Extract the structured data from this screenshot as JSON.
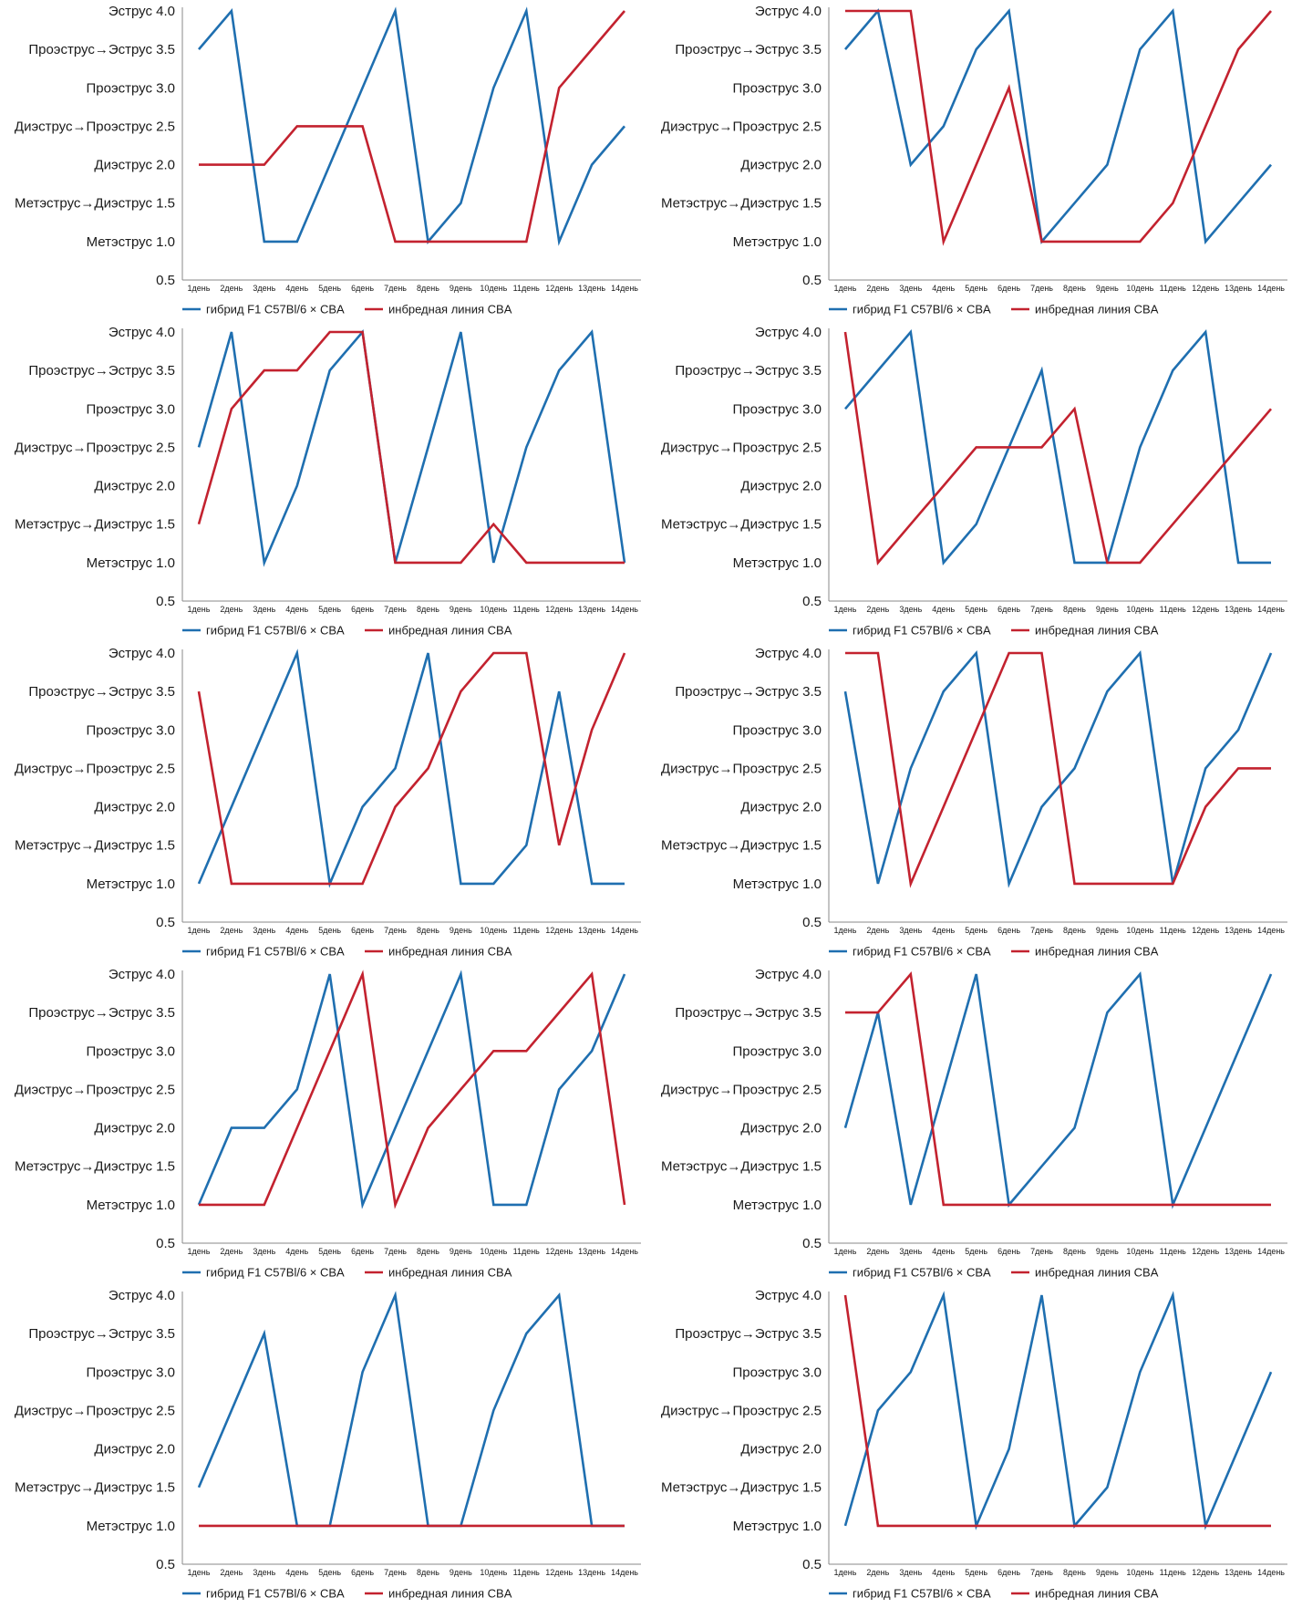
{
  "colors": {
    "hybrid": "#1f6fb0",
    "inbred": "#c3222f",
    "axis": "#8a8a8a"
  },
  "chart_data": [
    {
      "type": "line",
      "x": [
        "1день",
        "2день",
        "3день",
        "4день",
        "5день",
        "6день",
        "7день",
        "8день",
        "9день",
        "10день",
        "11день",
        "12день",
        "13день",
        "14день"
      ],
      "ylim": [
        0.5,
        4.0
      ],
      "y_ticks": [
        {
          "value": 4.0,
          "label": "Эструс 4.0"
        },
        {
          "value": 3.5,
          "label": "Проэструс→Эструс 3.5"
        },
        {
          "value": 3.0,
          "label": "Проэструс 3.0"
        },
        {
          "value": 2.5,
          "label": "Диэструс→Проэструс 2.5"
        },
        {
          "value": 2.0,
          "label": "Диэструс 2.0"
        },
        {
          "value": 1.5,
          "label": "Метэструс→Диэструс 1.5"
        },
        {
          "value": 1.0,
          "label": "Метэструс 1.0"
        },
        {
          "value": 0.5,
          "label": "0.5"
        }
      ],
      "series": [
        {
          "name": "гибрид F1 C57Bl/6 × CBA",
          "key": "hybrid",
          "values": [
            3.5,
            4,
            1,
            1,
            2,
            3,
            4,
            1,
            1.5,
            3,
            4,
            1,
            2,
            2.5
          ]
        },
        {
          "name": "инбредная линия CBA",
          "key": "inbred",
          "values": [
            2,
            2,
            2,
            2.5,
            2.5,
            2.5,
            1,
            1,
            1,
            1,
            1,
            3,
            3.5,
            4
          ]
        }
      ]
    },
    {
      "type": "line",
      "x": [
        "1день",
        "2день",
        "3день",
        "4день",
        "5день",
        "6день",
        "7день",
        "8день",
        "9день",
        "10день",
        "11день",
        "12день",
        "13день",
        "14день"
      ],
      "ylim": [
        0.5,
        4.0
      ],
      "y_ticks": [
        {
          "value": 4.0,
          "label": "Эструс 4.0"
        },
        {
          "value": 3.5,
          "label": "Проэструс→Эструс 3.5"
        },
        {
          "value": 3.0,
          "label": "Проэструс 3.0"
        },
        {
          "value": 2.5,
          "label": "Диэструс→Проэструс 2.5"
        },
        {
          "value": 2.0,
          "label": "Диэструс 2.0"
        },
        {
          "value": 1.5,
          "label": "Метэструс→Диэструс 1.5"
        },
        {
          "value": 1.0,
          "label": "Метэструс 1.0"
        },
        {
          "value": 0.5,
          "label": "0.5"
        }
      ],
      "series": [
        {
          "name": "гибрид F1 C57Bl/6 × CBA",
          "key": "hybrid",
          "values": [
            3.5,
            4,
            2,
            2.5,
            3.5,
            4,
            1,
            1.5,
            2,
            3.5,
            4,
            1,
            1.5,
            2
          ]
        },
        {
          "name": "инбредная линия CBA",
          "key": "inbred",
          "values": [
            4,
            4,
            4,
            1,
            2,
            3,
            1,
            1,
            1,
            1,
            1.5,
            2.5,
            3.5,
            4
          ]
        }
      ]
    },
    {
      "type": "line",
      "x": [
        "1день",
        "2день",
        "3день",
        "4день",
        "5день",
        "6день",
        "7день",
        "8день",
        "9день",
        "10день",
        "11день",
        "12день",
        "13день",
        "14день"
      ],
      "ylim": [
        0.5,
        4.0
      ],
      "y_ticks": [
        {
          "value": 4.0,
          "label": "Эструс 4.0"
        },
        {
          "value": 3.5,
          "label": "Проэструс→Эструс 3.5"
        },
        {
          "value": 3.0,
          "label": "Проэструс 3.0"
        },
        {
          "value": 2.5,
          "label": "Диэструс→Проэструс 2.5"
        },
        {
          "value": 2.0,
          "label": "Диэструс 2.0"
        },
        {
          "value": 1.5,
          "label": "Метэструс→Диэструс 1.5"
        },
        {
          "value": 1.0,
          "label": "Метэструс 1.0"
        },
        {
          "value": 0.5,
          "label": "0.5"
        }
      ],
      "series": [
        {
          "name": "гибрид F1 C57Bl/6 × CBA",
          "key": "hybrid",
          "values": [
            2.5,
            4,
            1,
            2,
            3.5,
            4,
            1,
            2.5,
            4,
            1,
            2.5,
            3.5,
            4,
            1
          ]
        },
        {
          "name": "инбредная линия CBA",
          "key": "inbred",
          "values": [
            1.5,
            3,
            3.5,
            3.5,
            4,
            4,
            1,
            1,
            1,
            1.5,
            1,
            1,
            1,
            1
          ]
        }
      ]
    },
    {
      "type": "line",
      "x": [
        "1день",
        "2день",
        "3день",
        "4день",
        "5день",
        "6день",
        "7день",
        "8день",
        "9день",
        "10день",
        "11день",
        "12день",
        "13день",
        "14день"
      ],
      "ylim": [
        0.5,
        4.0
      ],
      "y_ticks": [
        {
          "value": 4.0,
          "label": "Эструс 4.0"
        },
        {
          "value": 3.5,
          "label": "Проэструс→Эструс 3.5"
        },
        {
          "value": 3.0,
          "label": "Проэструс 3.0"
        },
        {
          "value": 2.5,
          "label": "Диэструс→Проэструс 2.5"
        },
        {
          "value": 2.0,
          "label": "Диэструс 2.0"
        },
        {
          "value": 1.5,
          "label": "Метэструс→Диэструс 1.5"
        },
        {
          "value": 1.0,
          "label": "Метэструс 1.0"
        },
        {
          "value": 0.5,
          "label": "0.5"
        }
      ],
      "series": [
        {
          "name": "гибрид F1 C57Bl/6 × CBA",
          "key": "hybrid",
          "values": [
            3,
            3.5,
            4,
            1,
            1.5,
            2.5,
            3.5,
            1,
            1,
            2.5,
            3.5,
            4,
            1,
            1
          ]
        },
        {
          "name": "инбредная линия CBA",
          "key": "inbred",
          "values": [
            4,
            1,
            1.5,
            2,
            2.5,
            2.5,
            2.5,
            3,
            1,
            1,
            1.5,
            2,
            2.5,
            3
          ]
        }
      ]
    },
    {
      "type": "line",
      "x": [
        "1день",
        "2день",
        "3день",
        "4день",
        "5день",
        "6день",
        "7день",
        "8день",
        "9день",
        "10день",
        "11день",
        "12день",
        "13день",
        "14день"
      ],
      "ylim": [
        0.5,
        4.0
      ],
      "y_ticks": [
        {
          "value": 4.0,
          "label": "Эструс 4.0"
        },
        {
          "value": 3.5,
          "label": "Проэструс→Эструс 3.5"
        },
        {
          "value": 3.0,
          "label": "Проэструс 3.0"
        },
        {
          "value": 2.5,
          "label": "Диэструс→Проэструс 2.5"
        },
        {
          "value": 2.0,
          "label": "Диэструс 2.0"
        },
        {
          "value": 1.5,
          "label": "Метэструс→Диэструс 1.5"
        },
        {
          "value": 1.0,
          "label": "Метэструс 1.0"
        },
        {
          "value": 0.5,
          "label": "0.5"
        }
      ],
      "series": [
        {
          "name": "гибрид F1 C57Bl/6 × CBA",
          "key": "hybrid",
          "values": [
            1,
            2,
            3,
            4,
            1,
            2,
            2.5,
            4,
            1,
            1,
            1.5,
            3.5,
            1,
            1
          ]
        },
        {
          "name": "инбредная линия CBA",
          "key": "inbred",
          "values": [
            3.5,
            1,
            1,
            1,
            1,
            1,
            2,
            2.5,
            3.5,
            4,
            4,
            1.5,
            3,
            4
          ]
        }
      ]
    },
    {
      "type": "line",
      "x": [
        "1день",
        "2день",
        "3день",
        "4день",
        "5день",
        "6день",
        "7день",
        "8день",
        "9день",
        "10день",
        "11день",
        "12день",
        "13день",
        "14день"
      ],
      "ylim": [
        0.5,
        4.0
      ],
      "y_ticks": [
        {
          "value": 4.0,
          "label": "Эструс 4.0"
        },
        {
          "value": 3.5,
          "label": "Проэструс→Эструс 3.5"
        },
        {
          "value": 3.0,
          "label": "Проэструс 3.0"
        },
        {
          "value": 2.5,
          "label": "Диэструс→Проэструс 2.5"
        },
        {
          "value": 2.0,
          "label": "Диэструс 2.0"
        },
        {
          "value": 1.5,
          "label": "Метэструс→Диэструс 1.5"
        },
        {
          "value": 1.0,
          "label": "Метэструс 1.0"
        },
        {
          "value": 0.5,
          "label": "0.5"
        }
      ],
      "series": [
        {
          "name": "гибрид F1 C57Bl/6 × CBA",
          "key": "hybrid",
          "values": [
            3.5,
            1,
            2.5,
            3.5,
            4,
            1,
            2,
            2.5,
            3.5,
            4,
            1,
            2.5,
            3,
            4
          ]
        },
        {
          "name": "инбредная линия CBA",
          "key": "inbred",
          "values": [
            4,
            4,
            1,
            2,
            3,
            4,
            4,
            1,
            1,
            1,
            1,
            2,
            2.5,
            2.5
          ]
        }
      ]
    },
    {
      "type": "line",
      "x": [
        "1день",
        "2день",
        "3день",
        "4день",
        "5день",
        "6день",
        "7день",
        "8день",
        "9день",
        "10день",
        "11день",
        "12день",
        "13день",
        "14день"
      ],
      "ylim": [
        0.5,
        4.0
      ],
      "y_ticks": [
        {
          "value": 4.0,
          "label": "Эструс 4.0"
        },
        {
          "value": 3.5,
          "label": "Проэструс→Эструс 3.5"
        },
        {
          "value": 3.0,
          "label": "Проэструс 3.0"
        },
        {
          "value": 2.5,
          "label": "Диэструс→Проэструс 2.5"
        },
        {
          "value": 2.0,
          "label": "Диэструс 2.0"
        },
        {
          "value": 1.5,
          "label": "Метэструс→Диэструс 1.5"
        },
        {
          "value": 1.0,
          "label": "Метэструс 1.0"
        },
        {
          "value": 0.5,
          "label": "0.5"
        }
      ],
      "series": [
        {
          "name": "гибрид F1 C57Bl/6 × CBA",
          "key": "hybrid",
          "values": [
            1,
            2,
            2,
            2.5,
            4,
            1,
            2,
            3,
            4,
            1,
            1,
            2.5,
            3,
            4
          ]
        },
        {
          "name": "инбредная линия CBA",
          "key": "inbred",
          "values": [
            1,
            1,
            1,
            2,
            3,
            4,
            1,
            2,
            2.5,
            3,
            3,
            3.5,
            4,
            1
          ]
        }
      ]
    },
    {
      "type": "line",
      "x": [
        "1день",
        "2день",
        "3день",
        "4день",
        "5день",
        "6день",
        "7день",
        "8день",
        "9день",
        "10день",
        "11день",
        "12день",
        "13день",
        "14день"
      ],
      "ylim": [
        0.5,
        4.0
      ],
      "y_ticks": [
        {
          "value": 4.0,
          "label": "Эструс 4.0"
        },
        {
          "value": 3.5,
          "label": "Проэструс→Эструс 3.5"
        },
        {
          "value": 3.0,
          "label": "Проэструс 3.0"
        },
        {
          "value": 2.5,
          "label": "Диэструс→Проэструс 2.5"
        },
        {
          "value": 2.0,
          "label": "Диэструс 2.0"
        },
        {
          "value": 1.5,
          "label": "Метэструс→Диэструс 1.5"
        },
        {
          "value": 1.0,
          "label": "Метэструс 1.0"
        },
        {
          "value": 0.5,
          "label": "0.5"
        }
      ],
      "series": [
        {
          "name": "гибрид F1 C57Bl/6 × CBA",
          "key": "hybrid",
          "values": [
            2,
            3.5,
            1,
            2.5,
            4,
            1,
            1.5,
            2,
            3.5,
            4,
            1,
            2,
            3,
            4
          ]
        },
        {
          "name": "инбредная линия CBA",
          "key": "inbred",
          "values": [
            3.5,
            3.5,
            4,
            1,
            1,
            1,
            1,
            1,
            1,
            1,
            1,
            1,
            1,
            1
          ]
        }
      ]
    },
    {
      "type": "line",
      "x": [
        "1день",
        "2день",
        "3день",
        "4день",
        "5день",
        "6день",
        "7день",
        "8день",
        "9день",
        "10день",
        "11день",
        "12день",
        "13день",
        "14день"
      ],
      "ylim": [
        0.5,
        4.0
      ],
      "y_ticks": [
        {
          "value": 4.0,
          "label": "Эструс 4.0"
        },
        {
          "value": 3.5,
          "label": "Проэструс→Эструс 3.5"
        },
        {
          "value": 3.0,
          "label": "Проэструс 3.0"
        },
        {
          "value": 2.5,
          "label": "Диэструс→Проэструс 2.5"
        },
        {
          "value": 2.0,
          "label": "Диэструс 2.0"
        },
        {
          "value": 1.5,
          "label": "Метэструс→Диэструс 1.5"
        },
        {
          "value": 1.0,
          "label": "Метэструс 1.0"
        },
        {
          "value": 0.5,
          "label": "0.5"
        }
      ],
      "series": [
        {
          "name": "гибрид F1 C57Bl/6 × CBA",
          "key": "hybrid",
          "values": [
            1.5,
            2.5,
            3.5,
            1,
            1,
            3,
            4,
            1,
            1,
            2.5,
            3.5,
            4,
            1,
            1
          ]
        },
        {
          "name": "инбредная линия CBA",
          "key": "inbred",
          "values": [
            1,
            1,
            1,
            1,
            1,
            1,
            1,
            1,
            1,
            1,
            1,
            1,
            1,
            1
          ]
        }
      ]
    },
    {
      "type": "line",
      "x": [
        "1день",
        "2день",
        "3день",
        "4день",
        "5день",
        "6день",
        "7день",
        "8день",
        "9день",
        "10день",
        "11день",
        "12день",
        "13день",
        "14день"
      ],
      "ylim": [
        0.5,
        4.0
      ],
      "y_ticks": [
        {
          "value": 4.0,
          "label": "Эструс 4.0"
        },
        {
          "value": 3.5,
          "label": "Проэструс→Эструс 3.5"
        },
        {
          "value": 3.0,
          "label": "Проэструс 3.0"
        },
        {
          "value": 2.5,
          "label": "Диэструс→Проэструс 2.5"
        },
        {
          "value": 2.0,
          "label": "Диэструс 2.0"
        },
        {
          "value": 1.5,
          "label": "Метэструс→Диэструс 1.5"
        },
        {
          "value": 1.0,
          "label": "Метэструс 1.0"
        },
        {
          "value": 0.5,
          "label": "0.5"
        }
      ],
      "series": [
        {
          "name": "гибрид F1 C57Bl/6 × CBA",
          "key": "hybrid",
          "values": [
            1,
            2.5,
            3,
            4,
            1,
            2,
            4,
            1,
            1.5,
            3,
            4,
            1,
            2,
            3
          ]
        },
        {
          "name": "инбредная линия CBA",
          "key": "inbred",
          "values": [
            4,
            1,
            1,
            1,
            1,
            1,
            1,
            1,
            1,
            1,
            1,
            1,
            1,
            1
          ]
        }
      ]
    }
  ]
}
